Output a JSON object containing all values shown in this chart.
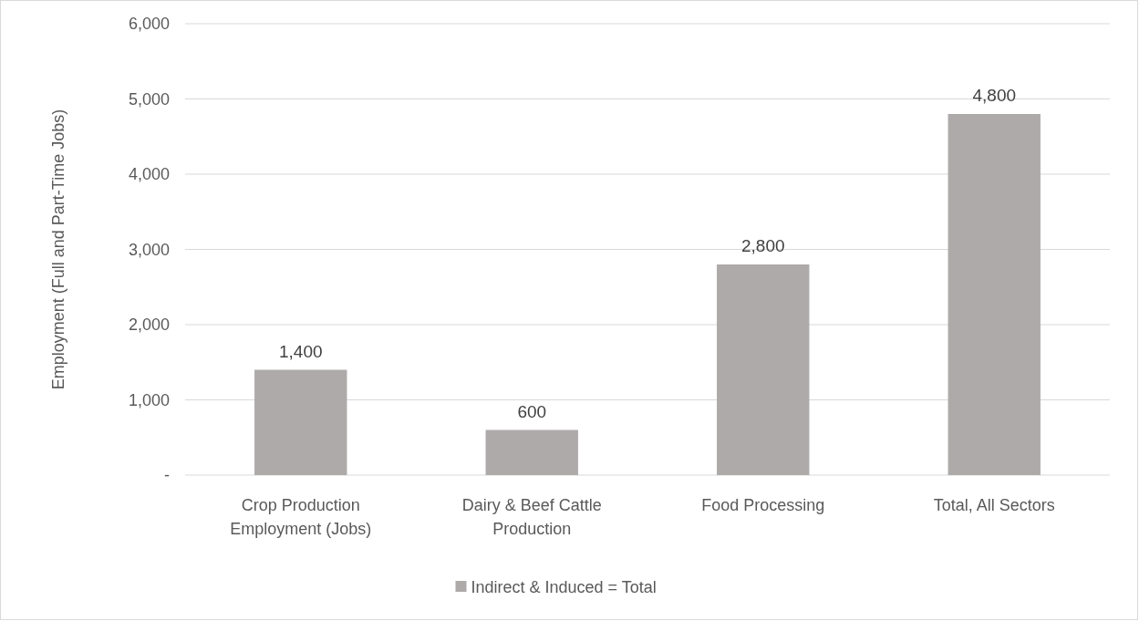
{
  "chart_data": {
    "type": "bar",
    "ylabel": "Employment (Full and Part-Time Jobs)",
    "categories": [
      "Crop Production Employment (Jobs)",
      "Dairy & Beef Cattle Production",
      "Food Processing",
      "Total, All Sectors"
    ],
    "series": [
      {
        "name": "Indirect & Induced = Total",
        "color": "#aeaaaa",
        "values": [
          1400,
          600,
          2800,
          4800
        ],
        "value_labels": [
          "1,400",
          "600",
          "2,800",
          "4,800"
        ]
      }
    ],
    "ylim": [
      0,
      6000
    ],
    "yticks": [
      {
        "value": 0,
        "label": "-"
      },
      {
        "value": 1000,
        "label": "1,000"
      },
      {
        "value": 2000,
        "label": "2,000"
      },
      {
        "value": 3000,
        "label": "3,000"
      },
      {
        "value": 4000,
        "label": "4,000"
      },
      {
        "value": 5000,
        "label": "5,000"
      },
      {
        "value": 6000,
        "label": "6,000"
      }
    ],
    "grid": "y",
    "legend": "bottom"
  }
}
